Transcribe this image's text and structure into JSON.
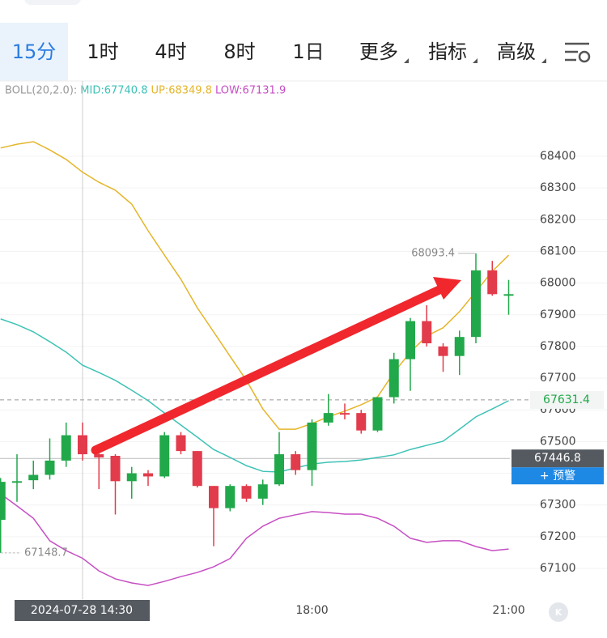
{
  "tabs": [
    "15分",
    "1时",
    "4时",
    "8时",
    "1日",
    "更多",
    "指标",
    "高级"
  ],
  "chart_data": {
    "type": "candlestick",
    "legend": [
      "BOLL(20,2.0):",
      "MID:67740.8",
      "UP:68349.8",
      "LOW:67131.9"
    ],
    "categories": [
      null,
      null,
      null,
      null,
      null,
      null,
      null,
      null,
      null,
      null,
      null,
      null,
      null,
      null,
      null,
      null,
      null,
      null,
      null,
      "18:00",
      null,
      null,
      null,
      null,
      null,
      null,
      null,
      null,
      null,
      null,
      null,
      "21:00"
    ],
    "open": [
      67253,
      67370,
      67378,
      67395,
      67440,
      67520,
      67460,
      67455,
      67375,
      67400,
      67390,
      67520,
      67470,
      67360,
      67290,
      67360,
      67320,
      67365,
      67460,
      67410,
      67560,
      67590,
      67590,
      67535,
      67640,
      67760,
      67880,
      67800,
      67770,
      67830,
      68040,
      67960
    ],
    "high": [
      67385,
      67460,
      67440,
      67510,
      67560,
      67560,
      67470,
      67460,
      67420,
      67410,
      67530,
      67530,
      67470,
      67360,
      67365,
      67365,
      67380,
      67530,
      67470,
      67570,
      67650,
      67620,
      67600,
      67640,
      67780,
      67890,
      67930,
      67810,
      67850,
      68093.4,
      68070,
      68010
    ],
    "low": [
      67148.7,
      67310,
      67350,
      67380,
      67420,
      67440,
      67350,
      67270,
      67320,
      67360,
      67385,
      67460,
      67355,
      67170,
      67280,
      67310,
      67300,
      67360,
      67395,
      67360,
      67550,
      67570,
      67525,
      67530,
      67620,
      67660,
      67800,
      67720,
      67710,
      67810,
      67960,
      67900
    ],
    "close": [
      67373,
      67375,
      67395,
      67440,
      67520,
      67460,
      67450,
      67375,
      67400,
      67390,
      67520,
      67470,
      67360,
      67290,
      67360,
      67320,
      67365,
      67460,
      67410,
      67560,
      67590,
      67585,
      67535,
      67640,
      67760,
      67880,
      67810,
      67770,
      67830,
      68040,
      67965,
      67965
    ],
    "up_color": "#21a84a",
    "down_color": "#e23b4b",
    "series": [
      {
        "name": "MID",
        "color": "#3ec2b6",
        "values": [
          67887,
          67869,
          67846,
          67815,
          67782,
          67740.8,
          67718,
          67693,
          67662,
          67629,
          67590,
          67552,
          67514,
          67475,
          67450,
          67424,
          67406,
          67404,
          67417,
          67429,
          67435,
          67437,
          67442,
          67450,
          67458,
          67475,
          67488,
          67501,
          67539,
          67578,
          67603,
          67629
        ]
      },
      {
        "name": "UP",
        "color": "#e5b52a",
        "values": [
          68426,
          68438,
          68446,
          68420,
          68390,
          68349.8,
          68318,
          68293,
          68249,
          68165,
          68088,
          68012,
          67922,
          67846,
          67769,
          67693,
          67603,
          67539,
          67539,
          67557,
          67578,
          67596,
          67616,
          67641,
          67718,
          67782,
          67833,
          67859,
          67910,
          67973,
          68037,
          68088
        ]
      },
      {
        "name": "LOW",
        "color": "#c64fc4",
        "values": [
          67335,
          67297,
          67258,
          67187,
          67156,
          67131.9,
          67092,
          67067,
          67054,
          67046,
          67059,
          67074,
          67087,
          67105,
          67131,
          67195,
          67233,
          67258,
          67269,
          67279,
          67276,
          67271,
          67271,
          67258,
          67233,
          67195,
          67182,
          67187,
          67187,
          67169,
          67156,
          67161
        ]
      }
    ],
    "ylim": [
      67000,
      68600
    ],
    "yticks": [
      67100,
      67200,
      67300,
      67400,
      67500,
      67600,
      67700,
      67800,
      67900,
      68000,
      68100,
      68200,
      68300,
      68400
    ],
    "grid": true,
    "last_price": 67631.4,
    "crosshair_index": 5,
    "crosshair_price": 67446.8,
    "crosshair_time": "2024-07-28 14:30",
    "alert_button": "+ 预警"
  }
}
